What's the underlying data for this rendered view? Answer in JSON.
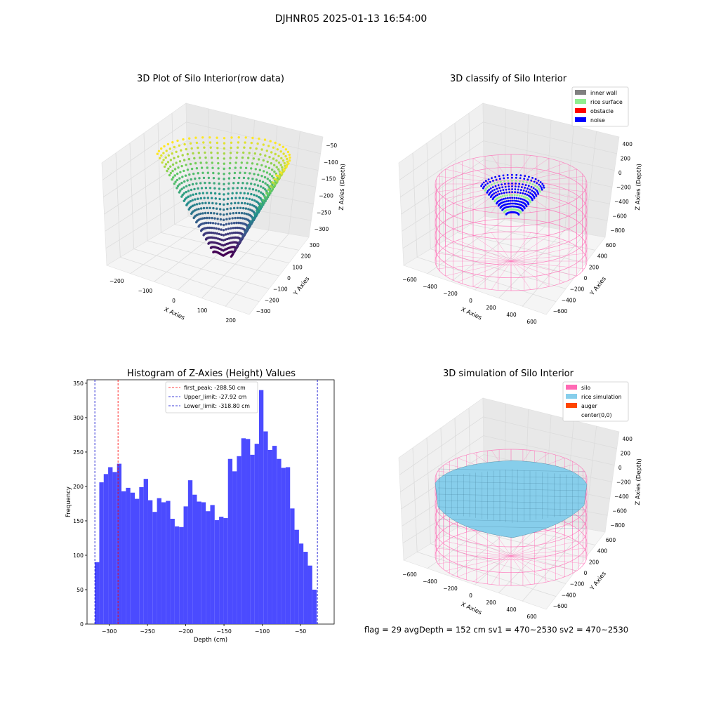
{
  "figure": {
    "suptitle": "DJHNR05 2025-01-13 16:54:00",
    "footer": "flag = 29  avgDepth = 152 cm  sv1 = 470~2530  sv2 = 470~2530"
  },
  "colors": {
    "hist_bar": "#4b4bff",
    "first_peak_line": "#ff0000",
    "limit_line": "#0000cc",
    "inner_wall": "#808080",
    "rice_surface": "#90ee90",
    "obstacle": "#ff0000",
    "noise": "#0000ff",
    "silo": "#ff69b4",
    "rice_simulation": "#87ceeb",
    "auger": "#ff4500",
    "pane": "#f2f2f2",
    "grid": "#dcdcdc"
  },
  "chart_data": [
    {
      "type": "scatter3d",
      "title": "3D Plot of Silo Interior(row data)",
      "xlabel": "X Axies",
      "ylabel": "Y Axies",
      "zlabel": "Z Axies (Depth)",
      "xticks": [
        "−200",
        "−100",
        "0",
        "100",
        "200"
      ],
      "yticks": [
        "300",
        "200",
        "100",
        "0",
        "−100",
        "−200",
        "−300"
      ],
      "zticks": [
        "−50",
        "−100",
        "−150",
        "−200",
        "−250",
        "−300"
      ],
      "colormap": "viridis"
    },
    {
      "type": "scatter3d",
      "title": "3D classify of Silo Interior",
      "xlabel": "X Axies",
      "ylabel": "Y Axies",
      "zlabel": "Z Axies (Depth)",
      "xticks": [
        "−600",
        "−400",
        "−200",
        "0",
        "200",
        "400",
        "600"
      ],
      "yticks": [
        "600",
        "400",
        "200",
        "0",
        "−200",
        "−400",
        "−600"
      ],
      "zticks": [
        "400",
        "200",
        "0",
        "−200",
        "−400",
        "−600",
        "−800"
      ],
      "legend": {
        "position": "upper-right",
        "entries": [
          {
            "label": "inner wall",
            "color": "#808080"
          },
          {
            "label": "rice surface",
            "color": "#90ee90"
          },
          {
            "label": "obstacle",
            "color": "#ff0000"
          },
          {
            "label": "noise",
            "color": "#0000ff"
          }
        ]
      }
    },
    {
      "type": "bar",
      "title": "Histogram of Z-Axies (Height) Values",
      "xlabel": "Depth (cm)",
      "ylabel": "Frequency",
      "xlim": [
        -329,
        -6
      ],
      "ylim": [
        0,
        355
      ],
      "xticks": [
        -300,
        -250,
        -200,
        -150,
        -100,
        -50
      ],
      "xtick_labels": [
        "−300",
        "−250",
        "−200",
        "−150",
        "−100",
        "−50"
      ],
      "yticks": [
        0,
        50,
        100,
        150,
        200,
        250,
        300,
        350
      ],
      "yticks_labels": [
        "0",
        "50",
        "100",
        "150",
        "200",
        "250",
        "300",
        "350"
      ],
      "bin_start": -318.8,
      "bin_width": 5.8,
      "values": [
        90,
        206,
        218,
        228,
        221,
        233,
        193,
        198,
        191,
        182,
        199,
        211,
        180,
        163,
        183,
        177,
        179,
        153,
        142,
        141,
        171,
        209,
        188,
        178,
        177,
        164,
        173,
        151,
        156,
        154,
        240,
        222,
        244,
        270,
        269,
        246,
        262,
        340,
        280,
        253,
        259,
        240,
        227,
        228,
        168,
        137,
        117,
        105,
        85,
        50
      ],
      "vlines": [
        {
          "label": "first_peak: -288.50 cm",
          "x": -288.5,
          "color": "#ff0000"
        },
        {
          "label": "Upper_limit: -27.92 cm",
          "x": -27.92,
          "color": "#0000cc"
        },
        {
          "label": "Lower_limit: -318.80 cm",
          "x": -318.8,
          "color": "#0000cc"
        }
      ],
      "legend": {
        "position": "top-center"
      }
    },
    {
      "type": "surface3d",
      "title": "3D simulation of Silo Interior",
      "xlabel": "X Axies",
      "ylabel": "Y Axies",
      "zlabel": "Z Axies (Depth)",
      "xticks": [
        "−600",
        "−400",
        "−200",
        "0",
        "200",
        "400",
        "600"
      ],
      "yticks": [
        "600",
        "400",
        "200",
        "0",
        "−200",
        "−400",
        "−600"
      ],
      "zticks": [
        "400",
        "200",
        "0",
        "−200",
        "−400",
        "−600",
        "−800"
      ],
      "legend": {
        "position": "upper-right",
        "entries": [
          {
            "label": "silo",
            "color": "#ff69b4"
          },
          {
            "label": "rice simulation",
            "color": "#87ceeb"
          },
          {
            "label": "auger",
            "color": "#ff4500"
          },
          {
            "label": "center(0,0)",
            "color": "#ffffff"
          }
        ]
      }
    }
  ]
}
